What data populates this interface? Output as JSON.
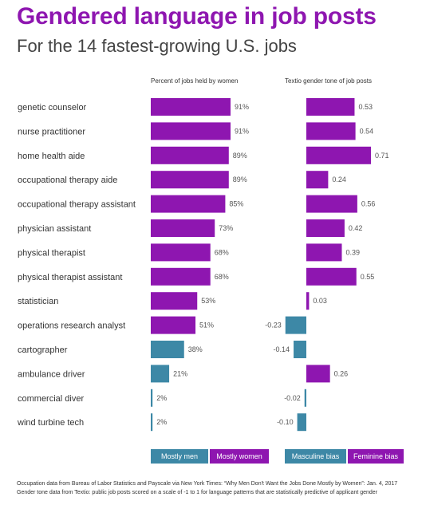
{
  "title": "Gendered language in job posts",
  "subtitle": "For the 14 fastest-growing U.S. jobs",
  "colors": {
    "women": "#8e16b0",
    "men": "#3d88a6"
  },
  "chart_data": {
    "type": "bar",
    "categories": [
      "genetic counselor",
      "nurse practitioner",
      "home health aide",
      "occupational therapy aide",
      "occupational therapy assistant",
      "physician assistant",
      "physical therapist",
      "physical therapist assistant",
      "statistician",
      "operations research analyst",
      "cartographer",
      "ambulance driver",
      "commercial diver",
      "wind turbine tech"
    ],
    "panels": [
      {
        "heading": "Percent of jobs held by women",
        "values": [
          91,
          91,
          89,
          89,
          85,
          73,
          68,
          68,
          53,
          51,
          38,
          21,
          2,
          2
        ],
        "labels": [
          "91%",
          "91%",
          "89%",
          "89%",
          "85%",
          "73%",
          "68%",
          "68%",
          "53%",
          "51%",
          "38%",
          "21%",
          "2%",
          "2%"
        ],
        "xlim": [
          0,
          100
        ],
        "legend": [
          "Mostly men",
          "Mostly women"
        ]
      },
      {
        "heading": "Textio gender tone of job posts",
        "values": [
          0.53,
          0.54,
          0.71,
          0.24,
          0.56,
          0.42,
          0.39,
          0.55,
          0.03,
          -0.23,
          -0.14,
          0.26,
          -0.02,
          -0.1
        ],
        "labels": [
          "0.53",
          "0.54",
          "0.71",
          "0.24",
          "0.56",
          "0.42",
          "0.39",
          "0.55",
          "0.03",
          "-0.23",
          "-0.14",
          "0.26",
          "-0.02",
          "-0.10"
        ],
        "xlim": [
          -1,
          1
        ],
        "legend": [
          "Masculine bias",
          "Feminine bias"
        ]
      }
    ]
  },
  "footnotes": [
    "Occupation data from Bureau of Labor Statistics and Payscale via New York Times: “Why Men Don't Want the Jobs Done Mostly by Women”: Jan. 4, 2017",
    "Gender tone data from Textio: public job posts scored on a scale of -1 to 1 for language patterns that are statistically predictive of applicant gender"
  ]
}
